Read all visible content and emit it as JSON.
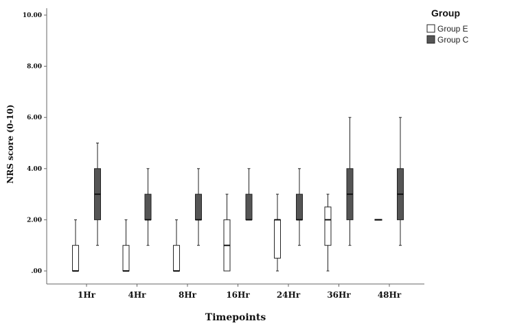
{
  "chart_data": {
    "type": "boxplot",
    "xlabel": "Timepoints",
    "ylabel": "NRS score (0-10)",
    "ylim": [
      0,
      10
    ],
    "yticks": [
      ".00",
      "2.00",
      "4.00",
      "6.00",
      "8.00",
      "10.00"
    ],
    "ytick_values": [
      0,
      2,
      4,
      6,
      8,
      10
    ],
    "categories": [
      "1Hr",
      "4Hr",
      "8Hr",
      "16Hr",
      "24Hr",
      "36Hr",
      "48Hr"
    ],
    "legend": {
      "title": "Group",
      "position": "top-right"
    },
    "grid": false,
    "series": [
      {
        "name": "Group E",
        "color": "#ffffff",
        "boxes": [
          {
            "min": 0,
            "q1": 0,
            "median": 0,
            "q3": 1,
            "max": 2
          },
          {
            "min": 0,
            "q1": 0,
            "median": 0,
            "q3": 1,
            "max": 2
          },
          {
            "min": 0,
            "q1": 0,
            "median": 0,
            "q3": 1,
            "max": 2
          },
          {
            "min": 0,
            "q1": 0,
            "median": 1,
            "q3": 2,
            "max": 3
          },
          {
            "min": 0,
            "q1": 0.5,
            "median": 2,
            "q3": 2,
            "max": 3
          },
          {
            "min": 0,
            "q1": 1,
            "median": 2,
            "q3": 2.5,
            "max": 3
          },
          {
            "min": 2,
            "q1": 2,
            "median": 2,
            "q3": 2,
            "max": 2
          }
        ]
      },
      {
        "name": "Group C",
        "color": "#555555",
        "boxes": [
          {
            "min": 1,
            "q1": 2,
            "median": 3,
            "q3": 4,
            "max": 5
          },
          {
            "min": 1,
            "q1": 2,
            "median": 2,
            "q3": 3,
            "max": 4
          },
          {
            "min": 1,
            "q1": 2,
            "median": 2,
            "q3": 3,
            "max": 4
          },
          {
            "min": 2,
            "q1": 2,
            "median": 2,
            "q3": 3,
            "max": 4
          },
          {
            "min": 1,
            "q1": 2,
            "median": 2,
            "q3": 3,
            "max": 4
          },
          {
            "min": 1,
            "q1": 2,
            "median": 3,
            "q3": 4,
            "max": 6
          },
          {
            "min": 1,
            "q1": 2,
            "median": 3,
            "q3": 4,
            "max": 6
          }
        ]
      }
    ]
  }
}
